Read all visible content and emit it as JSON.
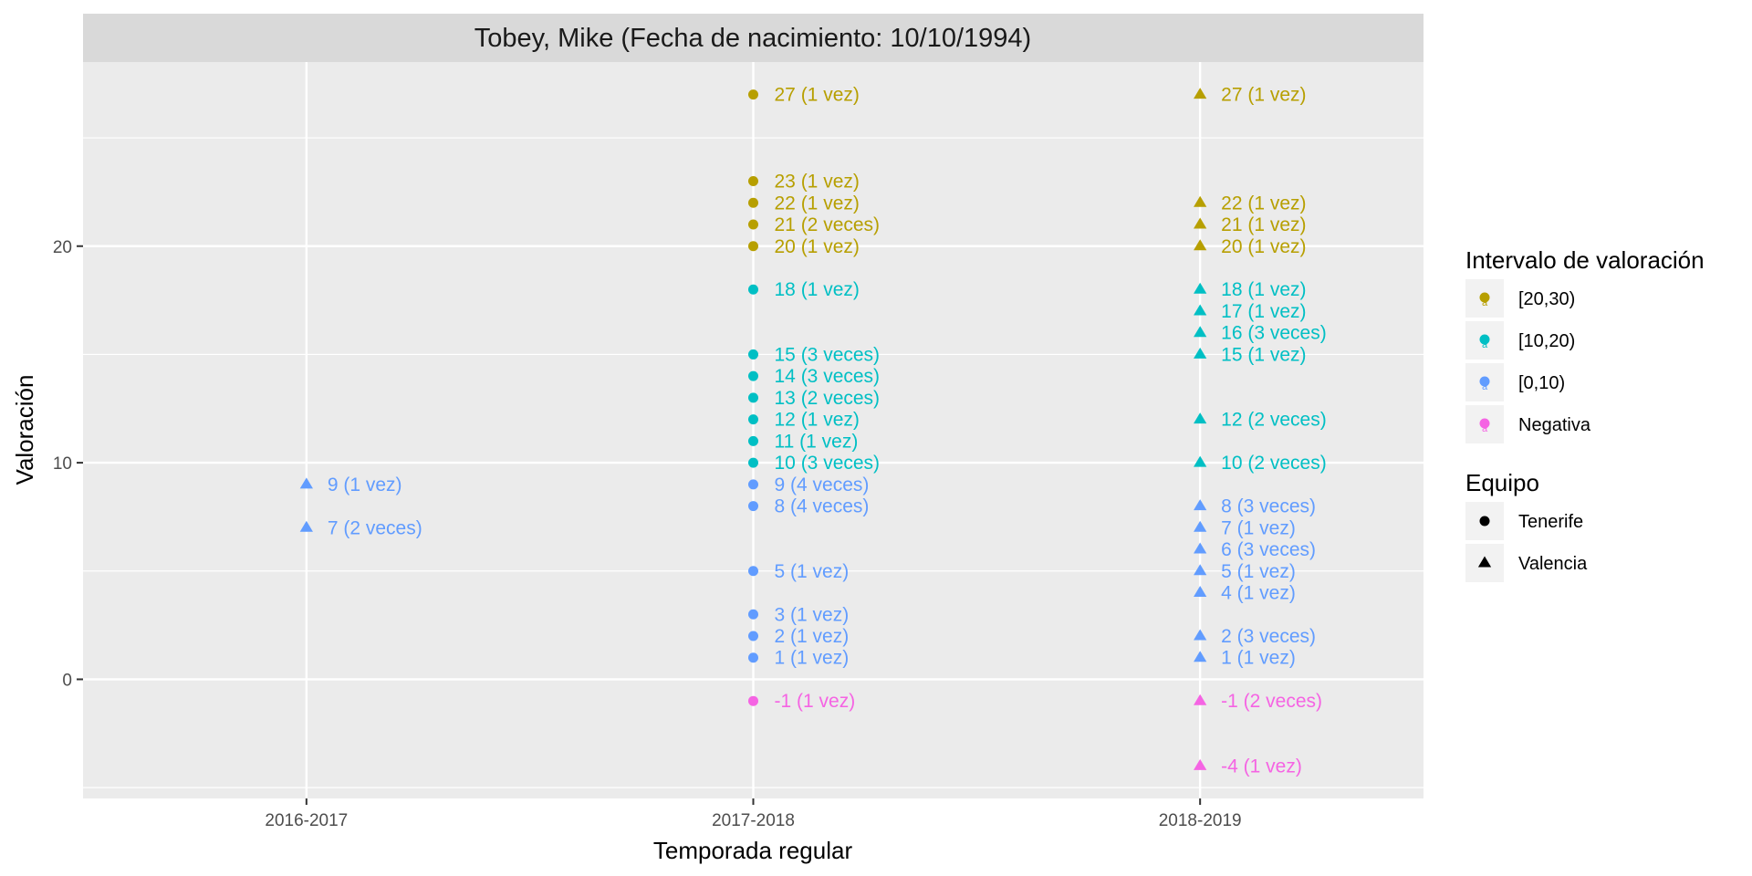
{
  "chart_data": {
    "type": "scatter",
    "title": "Tobey, Mike (Fecha de nacimiento: 10/10/1994)",
    "xlabel": "Temporada regular",
    "ylabel": "Valoración",
    "categories": [
      "2016-2017",
      "2017-2018",
      "2018-2019"
    ],
    "y_ticks": [
      0,
      10,
      20
    ],
    "ylim": [
      -5.5,
      28.5
    ],
    "grid": true,
    "legend_placement": "right",
    "legends": [
      {
        "title": "Intervalo de valoración",
        "key": "interval",
        "entries": [
          {
            "label": "[20,30)",
            "color": "#B79F00"
          },
          {
            "label": "[10,20)",
            "color": "#00BFC4"
          },
          {
            "label": "[0,10)",
            "color": "#619CFF"
          },
          {
            "label": "Negativa",
            "color": "#F564E3"
          }
        ]
      },
      {
        "title": "Equipo",
        "key": "team",
        "entries": [
          {
            "label": "Tenerife",
            "shape": "circle"
          },
          {
            "label": "Valencia",
            "shape": "triangle"
          }
        ]
      }
    ],
    "points": [
      {
        "x": "2016-2017",
        "y": 9,
        "label": "9 (1 vez)",
        "interval": "[0,10)",
        "team": "Valencia"
      },
      {
        "x": "2016-2017",
        "y": 7,
        "label": "7 (2 veces)",
        "interval": "[0,10)",
        "team": "Valencia"
      },
      {
        "x": "2017-2018",
        "y": 27,
        "label": "27 (1 vez)",
        "interval": "[20,30)",
        "team": "Tenerife"
      },
      {
        "x": "2017-2018",
        "y": 23,
        "label": "23 (1 vez)",
        "interval": "[20,30)",
        "team": "Tenerife"
      },
      {
        "x": "2017-2018",
        "y": 22,
        "label": "22 (1 vez)",
        "interval": "[20,30)",
        "team": "Tenerife"
      },
      {
        "x": "2017-2018",
        "y": 21,
        "label": "21 (2 veces)",
        "interval": "[20,30)",
        "team": "Tenerife"
      },
      {
        "x": "2017-2018",
        "y": 20,
        "label": "20 (1 vez)",
        "interval": "[20,30)",
        "team": "Tenerife"
      },
      {
        "x": "2017-2018",
        "y": 18,
        "label": "18 (1 vez)",
        "interval": "[10,20)",
        "team": "Tenerife"
      },
      {
        "x": "2017-2018",
        "y": 15,
        "label": "15 (3 veces)",
        "interval": "[10,20)",
        "team": "Tenerife"
      },
      {
        "x": "2017-2018",
        "y": 14,
        "label": "14 (3 veces)",
        "interval": "[10,20)",
        "team": "Tenerife"
      },
      {
        "x": "2017-2018",
        "y": 13,
        "label": "13 (2 veces)",
        "interval": "[10,20)",
        "team": "Tenerife"
      },
      {
        "x": "2017-2018",
        "y": 12,
        "label": "12 (1 vez)",
        "interval": "[10,20)",
        "team": "Tenerife"
      },
      {
        "x": "2017-2018",
        "y": 11,
        "label": "11 (1 vez)",
        "interval": "[10,20)",
        "team": "Tenerife"
      },
      {
        "x": "2017-2018",
        "y": 10,
        "label": "10 (3 veces)",
        "interval": "[10,20)",
        "team": "Tenerife"
      },
      {
        "x": "2017-2018",
        "y": 9,
        "label": "9 (4 veces)",
        "interval": "[0,10)",
        "team": "Tenerife"
      },
      {
        "x": "2017-2018",
        "y": 8,
        "label": "8 (4 veces)",
        "interval": "[0,10)",
        "team": "Tenerife"
      },
      {
        "x": "2017-2018",
        "y": 5,
        "label": "5 (1 vez)",
        "interval": "[0,10)",
        "team": "Tenerife"
      },
      {
        "x": "2017-2018",
        "y": 3,
        "label": "3 (1 vez)",
        "interval": "[0,10)",
        "team": "Tenerife"
      },
      {
        "x": "2017-2018",
        "y": 2,
        "label": "2 (1 vez)",
        "interval": "[0,10)",
        "team": "Tenerife"
      },
      {
        "x": "2017-2018",
        "y": 1,
        "label": "1 (1 vez)",
        "interval": "[0,10)",
        "team": "Tenerife"
      },
      {
        "x": "2017-2018",
        "y": -1,
        "label": "-1 (1 vez)",
        "interval": "Negativa",
        "team": "Tenerife"
      },
      {
        "x": "2018-2019",
        "y": 27,
        "label": "27 (1 vez)",
        "interval": "[20,30)",
        "team": "Valencia"
      },
      {
        "x": "2018-2019",
        "y": 22,
        "label": "22 (1 vez)",
        "interval": "[20,30)",
        "team": "Valencia"
      },
      {
        "x": "2018-2019",
        "y": 21,
        "label": "21 (1 vez)",
        "interval": "[20,30)",
        "team": "Valencia"
      },
      {
        "x": "2018-2019",
        "y": 20,
        "label": "20 (1 vez)",
        "interval": "[20,30)",
        "team": "Valencia"
      },
      {
        "x": "2018-2019",
        "y": 18,
        "label": "18 (1 vez)",
        "interval": "[10,20)",
        "team": "Valencia"
      },
      {
        "x": "2018-2019",
        "y": 17,
        "label": "17 (1 vez)",
        "interval": "[10,20)",
        "team": "Valencia"
      },
      {
        "x": "2018-2019",
        "y": 16,
        "label": "16 (3 veces)",
        "interval": "[10,20)",
        "team": "Valencia"
      },
      {
        "x": "2018-2019",
        "y": 15,
        "label": "15 (1 vez)",
        "interval": "[10,20)",
        "team": "Valencia"
      },
      {
        "x": "2018-2019",
        "y": 12,
        "label": "12 (2 veces)",
        "interval": "[10,20)",
        "team": "Valencia"
      },
      {
        "x": "2018-2019",
        "y": 10,
        "label": "10 (2 veces)",
        "interval": "[10,20)",
        "team": "Valencia"
      },
      {
        "x": "2018-2019",
        "y": 8,
        "label": "8 (3 veces)",
        "interval": "[0,10)",
        "team": "Valencia"
      },
      {
        "x": "2018-2019",
        "y": 7,
        "label": "7 (1 vez)",
        "interval": "[0,10)",
        "team": "Valencia"
      },
      {
        "x": "2018-2019",
        "y": 6,
        "label": "6 (3 veces)",
        "interval": "[0,10)",
        "team": "Valencia"
      },
      {
        "x": "2018-2019",
        "y": 5,
        "label": "5 (1 vez)",
        "interval": "[0,10)",
        "team": "Valencia"
      },
      {
        "x": "2018-2019",
        "y": 4,
        "label": "4 (1 vez)",
        "interval": "[0,10)",
        "team": "Valencia"
      },
      {
        "x": "2018-2019",
        "y": 2,
        "label": "2 (3 veces)",
        "interval": "[0,10)",
        "team": "Valencia"
      },
      {
        "x": "2018-2019",
        "y": 1,
        "label": "1 (1 vez)",
        "interval": "[0,10)",
        "team": "Valencia"
      },
      {
        "x": "2018-2019",
        "y": -1,
        "label": "-1 (2 veces)",
        "interval": "Negativa",
        "team": "Valencia"
      },
      {
        "x": "2018-2019",
        "y": -4,
        "label": "-4 (1 vez)",
        "interval": "Negativa",
        "team": "Valencia"
      }
    ]
  }
}
